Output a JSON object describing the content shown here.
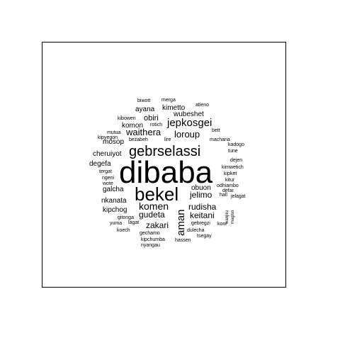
{
  "chart_data": {
    "type": "wordcloud",
    "title": "",
    "words": [
      {
        "text": "dibaba",
        "weight": 44
      },
      {
        "text": "bekel",
        "weight": 26
      },
      {
        "text": "gebrselassi",
        "weight": 20
      },
      {
        "text": "jepkosgei",
        "weight": 15
      },
      {
        "text": "aman",
        "weight": 15
      },
      {
        "text": "waithera",
        "weight": 13
      },
      {
        "text": "loroup",
        "weight": 13
      },
      {
        "text": "komen",
        "weight": 14
      },
      {
        "text": "jelimo",
        "weight": 12
      },
      {
        "text": "gudeta",
        "weight": 12
      },
      {
        "text": "zakari",
        "weight": 12
      },
      {
        "text": "rudisha",
        "weight": 12
      },
      {
        "text": "keitani",
        "weight": 12
      },
      {
        "text": "obiri",
        "weight": 11
      },
      {
        "text": "cheruiyot",
        "weight": 10
      },
      {
        "text": "degefa",
        "weight": 10
      },
      {
        "text": "ayana",
        "weight": 10
      },
      {
        "text": "kimetto",
        "weight": 10
      },
      {
        "text": "komon",
        "weight": 10
      },
      {
        "text": "wubeshet",
        "weight": 10
      },
      {
        "text": "mosop",
        "weight": 10
      },
      {
        "text": "galcha",
        "weight": 10
      },
      {
        "text": "nkanata",
        "weight": 10
      },
      {
        "text": "kipchog",
        "weight": 10
      },
      {
        "text": "obuon",
        "weight": 10
      },
      {
        "text": "mutua",
        "weight": 7
      },
      {
        "text": "kipyegon",
        "weight": 7
      },
      {
        "text": "bezabeh",
        "weight": 7
      },
      {
        "text": "lire",
        "weight": 7
      },
      {
        "text": "rotich",
        "weight": 7
      },
      {
        "text": "kibowen",
        "weight": 7
      },
      {
        "text": "biwott",
        "weight": 7
      },
      {
        "text": "merga",
        "weight": 7
      },
      {
        "text": "atieno",
        "weight": 7
      },
      {
        "text": "bett",
        "weight": 7
      },
      {
        "text": "macharia",
        "weight": 7
      },
      {
        "text": "kadogo",
        "weight": 7
      },
      {
        "text": "tune",
        "weight": 7
      },
      {
        "text": "dejen",
        "weight": 7
      },
      {
        "text": "kimwetich",
        "weight": 7
      },
      {
        "text": "kipket",
        "weight": 7
      },
      {
        "text": "kitur",
        "weight": 7
      },
      {
        "text": "odhiambo",
        "weight": 7
      },
      {
        "text": "defar",
        "weight": 7
      },
      {
        "text": "hall",
        "weight": 7
      },
      {
        "text": "jelagat",
        "weight": 7
      },
      {
        "text": "tergat",
        "weight": 7
      },
      {
        "text": "ngeni",
        "weight": 7
      },
      {
        "text": "wote",
        "weight": 7
      },
      {
        "text": "gitonga",
        "weight": 7
      },
      {
        "text": "lagat",
        "weight": 7
      },
      {
        "text": "yuma",
        "weight": 7
      },
      {
        "text": "koech",
        "weight": 7
      },
      {
        "text": "gechamo",
        "weight": 7
      },
      {
        "text": "kipchumba",
        "weight": 7
      },
      {
        "text": "nyangau",
        "weight": 7
      },
      {
        "text": "dulecha",
        "weight": 7
      },
      {
        "text": "tsegay",
        "weight": 7
      },
      {
        "text": "hassen",
        "weight": 7
      },
      {
        "text": "gebregzi",
        "weight": 7
      },
      {
        "text": "konr",
        "weight": 7
      },
      {
        "text": "wanjiru",
        "weight": 6
      },
      {
        "text": "magiso",
        "weight": 6
      }
    ]
  }
}
